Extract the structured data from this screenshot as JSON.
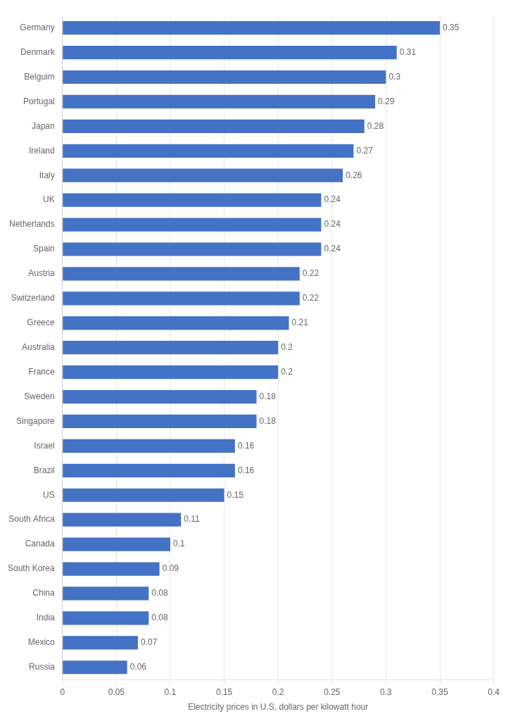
{
  "chart_data": {
    "type": "bar",
    "orientation": "horizontal",
    "xlabel": "Electricity prices in U.S. dollars per kilowatt hour",
    "categories": [
      "Germany",
      "Denmark",
      "Belguim",
      "Portugal",
      "Japan",
      "Ireland",
      "Italy",
      "UK",
      "Netherlands",
      "Spain",
      "Austria",
      "Switzerland",
      "Greece",
      "Australia",
      "France",
      "Sweden",
      "Singapore",
      "Israel",
      "Brazil",
      "US",
      "South Africa",
      "Canada",
      "South Korea",
      "China",
      "India",
      "Mexico",
      "Russia"
    ],
    "values": [
      0.35,
      0.31,
      0.3,
      0.29,
      0.28,
      0.27,
      0.26,
      0.24,
      0.24,
      0.24,
      0.22,
      0.22,
      0.21,
      0.2,
      0.2,
      0.18,
      0.18,
      0.16,
      0.16,
      0.15,
      0.11,
      0.1,
      0.09,
      0.08,
      0.08,
      0.07,
      0.06
    ],
    "color": "#4472C4",
    "xlim": [
      0,
      0.4
    ],
    "xticks": [
      0,
      0.05,
      0.1,
      0.15,
      0.2,
      0.25,
      0.3,
      0.35,
      0.4
    ],
    "grid": true,
    "data_labels": true
  }
}
